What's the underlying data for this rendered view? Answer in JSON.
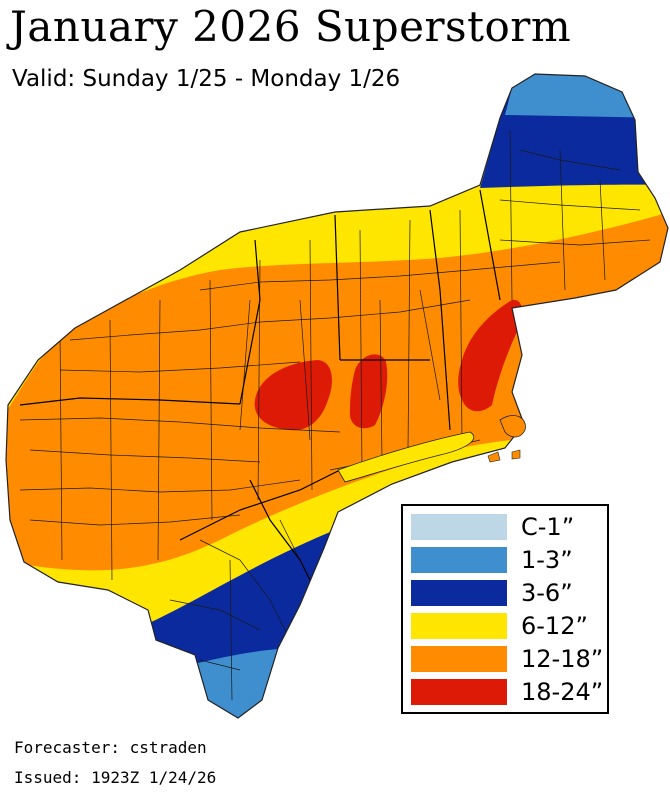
{
  "title": "January 2026 Superstorm",
  "subtitle": "Valid: Sunday 1/25 - Monday 1/26",
  "legend": {
    "items": [
      {
        "label": "C-1”",
        "color": "#bdd7e7"
      },
      {
        "label": "1-3”",
        "color": "#3f8fcf"
      },
      {
        "label": "3-6”",
        "color": "#0a2a9e"
      },
      {
        "label": "6-12”",
        "color": "#ffe600"
      },
      {
        "label": "12-18”",
        "color": "#ff8c00"
      },
      {
        "label": "18-24”",
        "color": "#dd1a06"
      }
    ]
  },
  "footer": {
    "forecaster": "Forecaster: cstraden",
    "issued": "Issued: 1923Z 1/24/26"
  }
}
